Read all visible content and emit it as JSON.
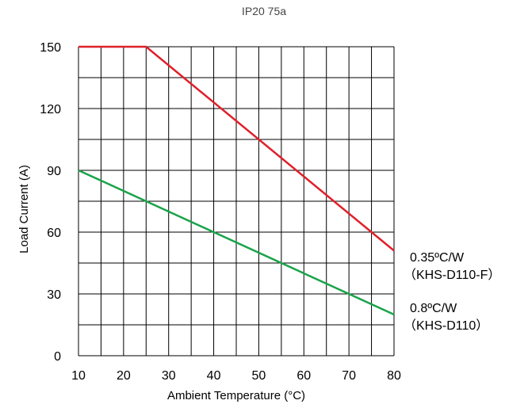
{
  "chart_data": {
    "type": "line",
    "title": "IP20 75a",
    "xlabel": "Ambient Temperature (°C)",
    "ylabel": "Load Current (A)",
    "xlim": [
      10,
      80
    ],
    "ylim": [
      0,
      150
    ],
    "xticks": [
      10,
      20,
      30,
      40,
      50,
      60,
      70,
      80
    ],
    "yticks": [
      0,
      30,
      60,
      90,
      120,
      150
    ],
    "grid": true,
    "series": [
      {
        "color": "#e0202a",
        "x": [
          10,
          25,
          80
        ],
        "y": [
          150,
          150,
          51
        ],
        "annotation": [
          "0.35ºC/W",
          "（KHS-D110-F）"
        ]
      },
      {
        "color": "#1aa34a",
        "x": [
          10,
          80
        ],
        "y": [
          90,
          20
        ],
        "annotation": [
          "0.8ºC/W",
          "（KHS-D110）"
        ]
      }
    ]
  }
}
